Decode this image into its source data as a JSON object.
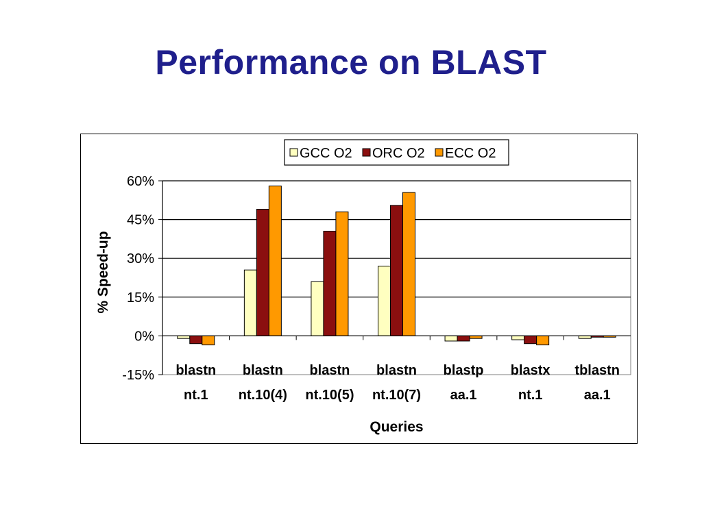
{
  "slide": {
    "title": "Performance on BLAST"
  },
  "chart_data": {
    "type": "bar",
    "categories": [
      [
        "blastn",
        "nt.1"
      ],
      [
        "blastn",
        "nt.10(4)"
      ],
      [
        "blastn",
        "nt.10(5)"
      ],
      [
        "blastn",
        "nt.10(7)"
      ],
      [
        "blastp",
        "aa.1"
      ],
      [
        "blastx",
        "nt.1"
      ],
      [
        "tblastn",
        "aa.1"
      ]
    ],
    "series": [
      {
        "name": "GCC O2",
        "color": "#ffffc0",
        "values": [
          -1.0,
          25.5,
          21.0,
          27.0,
          -2.0,
          -1.5,
          -1.0
        ]
      },
      {
        "name": "ORC O2",
        "color": "#8b0f0f",
        "values": [
          -3.0,
          49.0,
          40.5,
          50.5,
          -2.0,
          -3.0,
          -0.5
        ]
      },
      {
        "name": "ECC O2",
        "color": "#ff9900",
        "values": [
          -3.5,
          58.0,
          48.0,
          55.5,
          -1.0,
          -3.5,
          -0.5
        ]
      }
    ],
    "title": "",
    "xlabel": "Queries",
    "ylabel": "% Speed-up",
    "ylim": [
      -15,
      60
    ],
    "yticks": [
      60,
      45,
      30,
      15,
      0,
      -15
    ],
    "ytick_labels": [
      "60%",
      "45%",
      "30%",
      "15%",
      "0%",
      "-15%"
    ],
    "grid": true,
    "legend_position": "top-center"
  }
}
